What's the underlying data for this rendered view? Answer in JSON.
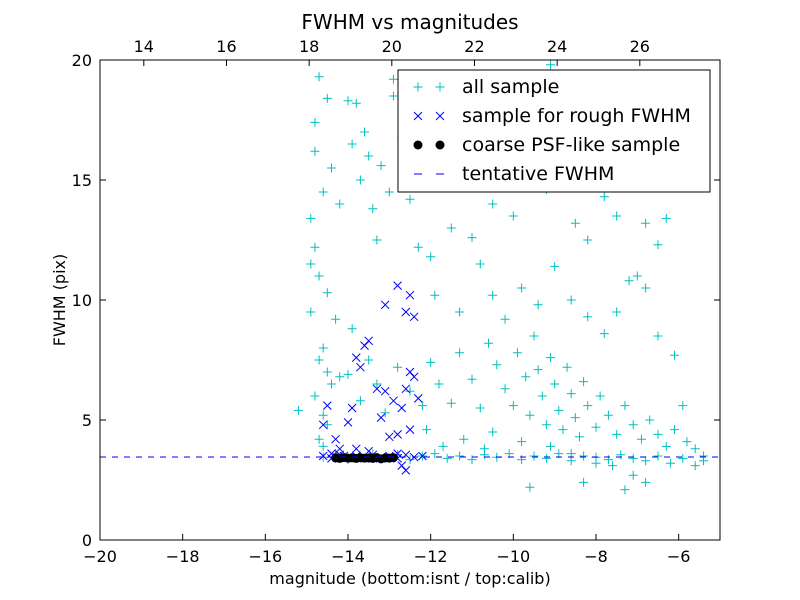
{
  "chart_data": {
    "type": "scatter",
    "title": "FWHM vs magnitudes",
    "xlabel": "magnitude (bottom:isnt / top:calib)",
    "ylabel": "FWHM (pix)",
    "xlim": [
      -20,
      -5
    ],
    "ylim": [
      0,
      20
    ],
    "top_axis_offset": 32.94,
    "xticks": [
      -20,
      -18,
      -16,
      -14,
      -12,
      -10,
      -8,
      -6
    ],
    "xtick_labels": [
      "−20",
      "−18",
      "−16",
      "−14",
      "−12",
      "−10",
      "−8",
      "−6"
    ],
    "top_xticks": [
      14,
      16,
      18,
      20,
      22,
      24,
      26
    ],
    "top_xtick_labels": [
      "14",
      "16",
      "18",
      "20",
      "22",
      "24",
      "26"
    ],
    "yticks": [
      0,
      5,
      10,
      15,
      20
    ],
    "ytick_labels": [
      "0",
      "5",
      "10",
      "15",
      "20"
    ],
    "legend_position": "top-right",
    "colors": {
      "all": "#00bfbf",
      "rough": "#0000ff",
      "coarse": "#000000",
      "tentative": "#0000ff"
    },
    "series": [
      {
        "name": "all sample",
        "marker": "plus",
        "points": [
          [
            -14.9,
            13.4
          ],
          [
            -14.8,
            12.2
          ],
          [
            -14.7,
            11
          ],
          [
            -14.9,
            9.5
          ],
          [
            -14.6,
            8
          ],
          [
            -14.7,
            7.5
          ],
          [
            -14.5,
            7
          ],
          [
            -14.8,
            6
          ],
          [
            -14.6,
            5.2
          ],
          [
            -14.5,
            4.8
          ],
          [
            -14.7,
            4.2
          ],
          [
            -14.6,
            3.9
          ],
          [
            -14.8,
            17.4
          ],
          [
            -14.7,
            19.3
          ],
          [
            -14.5,
            18.4
          ],
          [
            -14.8,
            16.2
          ],
          [
            -14.4,
            15.5
          ],
          [
            -14.6,
            14.5
          ],
          [
            -14.9,
            11.5
          ],
          [
            -14.3,
            9.2
          ],
          [
            -14.5,
            10.3
          ],
          [
            -14.4,
            6.5
          ],
          [
            -15.2,
            5.4
          ],
          [
            -14.2,
            6.8
          ],
          [
            -14,
            18.3
          ],
          [
            -13.8,
            18.2
          ],
          [
            -13.6,
            17
          ],
          [
            -13.9,
            16.5
          ],
          [
            -13.5,
            16
          ],
          [
            -13.2,
            15.6
          ],
          [
            -13.7,
            15
          ],
          [
            -14.2,
            14
          ],
          [
            -13.4,
            13.8
          ],
          [
            -13,
            14.5
          ],
          [
            -13.3,
            12.5
          ],
          [
            -12.9,
            18.5
          ],
          [
            -12.9,
            19.2
          ],
          [
            -12.7,
            16.8
          ],
          [
            -12.5,
            14.2
          ],
          [
            -12.3,
            12.2
          ],
          [
            -12,
            11.8
          ],
          [
            -11.5,
            13
          ],
          [
            -11,
            12.6
          ],
          [
            -10.5,
            14
          ],
          [
            -10.8,
            11.5
          ],
          [
            -10,
            13.5
          ],
          [
            -9.6,
            15.5
          ],
          [
            -9.2,
            14.6
          ],
          [
            -8.8,
            16.2
          ],
          [
            -8.5,
            13.2
          ],
          [
            -8.2,
            12.5
          ],
          [
            -7.8,
            14.3
          ],
          [
            -7.5,
            13.5
          ],
          [
            -7,
            11
          ],
          [
            -6.8,
            13.2
          ],
          [
            -6.5,
            12.3
          ],
          [
            -6.3,
            13.4
          ],
          [
            -6.8,
            10.5
          ],
          [
            -7.2,
            10.8
          ],
          [
            -9.8,
            17.5
          ],
          [
            -9.5,
            19.3
          ],
          [
            -9.1,
            19.8
          ],
          [
            -9.3,
            18.2
          ],
          [
            -10.3,
            16.5
          ],
          [
            -11.3,
            15
          ],
          [
            -11.9,
            10.2
          ],
          [
            -11.3,
            9.5
          ],
          [
            -10.5,
            10.2
          ],
          [
            -10.2,
            9.2
          ],
          [
            -9.8,
            10.5
          ],
          [
            -9.4,
            9.8
          ],
          [
            -9,
            11.4
          ],
          [
            -8.6,
            10
          ],
          [
            -8.2,
            9.3
          ],
          [
            -7.8,
            8.6
          ],
          [
            -7.5,
            9.5
          ],
          [
            -6.5,
            8.5
          ],
          [
            -6.1,
            7.7
          ],
          [
            -5.9,
            5.6
          ],
          [
            -13.9,
            8.8
          ],
          [
            -13.5,
            7.5
          ],
          [
            -14,
            6.9
          ],
          [
            -13.3,
            6.5
          ],
          [
            -13.7,
            5.8
          ],
          [
            -13.1,
            5.3
          ],
          [
            -12.8,
            7.2
          ],
          [
            -12.5,
            6.2
          ],
          [
            -12.2,
            5.6
          ],
          [
            -12,
            7.4
          ],
          [
            -11.8,
            6.5
          ],
          [
            -11.5,
            5.7
          ],
          [
            -11.3,
            7.8
          ],
          [
            -11,
            6.7
          ],
          [
            -10.8,
            5.5
          ],
          [
            -10.6,
            8.2
          ],
          [
            -10.4,
            7.3
          ],
          [
            -10.2,
            6.3
          ],
          [
            -10,
            5.6
          ],
          [
            -9.9,
            7.8
          ],
          [
            -9.7,
            6.8
          ],
          [
            -9.6,
            5.2
          ],
          [
            -9.5,
            8.5
          ],
          [
            -9.4,
            7.1
          ],
          [
            -9.3,
            6
          ],
          [
            -9.2,
            4.8
          ],
          [
            -9.1,
            7.6
          ],
          [
            -9,
            6.5
          ],
          [
            -8.9,
            5.4
          ],
          [
            -8.8,
            4.6
          ],
          [
            -8.7,
            7.2
          ],
          [
            -8.6,
            6.1
          ],
          [
            -8.5,
            5.1
          ],
          [
            -8.4,
            4.3
          ],
          [
            -8.3,
            6.6
          ],
          [
            -8.2,
            5.6
          ],
          [
            -8,
            4.7
          ],
          [
            -7.9,
            6
          ],
          [
            -7.7,
            5.2
          ],
          [
            -7.5,
            4.4
          ],
          [
            -7.3,
            5.6
          ],
          [
            -7.1,
            4.8
          ],
          [
            -6.9,
            4.2
          ],
          [
            -6.7,
            5
          ],
          [
            -6.5,
            4.4
          ],
          [
            -6.3,
            3.9
          ],
          [
            -6.1,
            4.6
          ],
          [
            -5.8,
            4.1
          ],
          [
            -5.6,
            3.8
          ],
          [
            -5.4,
            3.3
          ],
          [
            -10.5,
            4.5
          ],
          [
            -11.2,
            4.2
          ],
          [
            -12.1,
            4.6
          ],
          [
            -9.8,
            4.1
          ],
          [
            -9.1,
            3.9
          ],
          [
            -8.6,
            3.6
          ],
          [
            -8,
            3.2
          ],
          [
            -7.6,
            3.1
          ],
          [
            -7.1,
            2.7
          ],
          [
            -6.8,
            2.4
          ],
          [
            -9.6,
            2.2
          ],
          [
            -8.3,
            2.4
          ],
          [
            -7.3,
            2.1
          ],
          [
            -10.7,
            3.8
          ],
          [
            -11.7,
            3.9
          ],
          [
            -14.6,
            3.45
          ],
          [
            -14.3,
            3.6
          ],
          [
            -14,
            3.35
          ],
          [
            -13.7,
            3.5
          ],
          [
            -13.4,
            3.6
          ],
          [
            -13.1,
            3.4
          ],
          [
            -12.8,
            3.55
          ],
          [
            -12.5,
            3.35
          ],
          [
            -12.2,
            3.5
          ],
          [
            -11.9,
            3.6
          ],
          [
            -11.6,
            3.4
          ],
          [
            -11.3,
            3.5
          ],
          [
            -11,
            3.35
          ],
          [
            -10.7,
            3.55
          ],
          [
            -10.4,
            3.45
          ],
          [
            -10.1,
            3.6
          ],
          [
            -9.8,
            3.35
          ],
          [
            -9.5,
            3.5
          ],
          [
            -9.2,
            3.4
          ],
          [
            -8.9,
            3.6
          ],
          [
            -8.6,
            3.3
          ],
          [
            -8.3,
            3.5
          ],
          [
            -8,
            3.45
          ],
          [
            -7.7,
            3.35
          ],
          [
            -7.4,
            3.55
          ],
          [
            -7.1,
            3.4
          ],
          [
            -6.8,
            3.3
          ],
          [
            -6.5,
            3.5
          ],
          [
            -6.2,
            3.2
          ],
          [
            -5.9,
            3.4
          ],
          [
            -5.6,
            3.1
          ],
          [
            -5.4,
            3.5
          ]
        ]
      },
      {
        "name": "sample for rough FWHM",
        "marker": "x",
        "points": [
          [
            -14.4,
            3.6
          ],
          [
            -14.3,
            4.2
          ],
          [
            -14.5,
            5.6
          ],
          [
            -14.6,
            4.8
          ],
          [
            -14,
            4.9
          ],
          [
            -13.9,
            5.5
          ],
          [
            -13.8,
            7.6
          ],
          [
            -13.7,
            7.2
          ],
          [
            -13.5,
            8.3
          ],
          [
            -13.3,
            6.3
          ],
          [
            -13.1,
            6.2
          ],
          [
            -13.2,
            5.1
          ],
          [
            -13,
            4.3
          ],
          [
            -12.9,
            5.8
          ],
          [
            -12.8,
            4.4
          ],
          [
            -12.7,
            5.5
          ],
          [
            -12.6,
            6.3
          ],
          [
            -12.5,
            7
          ],
          [
            -12.4,
            6.8
          ],
          [
            -12.3,
            5.9
          ],
          [
            -12.6,
            9.5
          ],
          [
            -12.5,
            10.2
          ],
          [
            -12.4,
            9.3
          ],
          [
            -12.8,
            10.6
          ],
          [
            -13.1,
            9.8
          ],
          [
            -13.6,
            8.1
          ],
          [
            -14.2,
            3.8
          ],
          [
            -13.5,
            3.7
          ],
          [
            -12.8,
            3.6
          ],
          [
            -13.4,
            3.4
          ],
          [
            -14.1,
            3.5
          ],
          [
            -12.6,
            2.9
          ],
          [
            -12.5,
            4.6
          ],
          [
            -13.8,
            3.8
          ],
          [
            -12.7,
            3.1
          ],
          [
            -14.6,
            3.5
          ],
          [
            -14.4,
            3.4
          ],
          [
            -14.2,
            3.55
          ],
          [
            -14,
            3.45
          ],
          [
            -13.8,
            3.5
          ],
          [
            -13.6,
            3.4
          ],
          [
            -13.4,
            3.55
          ],
          [
            -13.2,
            3.45
          ],
          [
            -13,
            3.5
          ],
          [
            -12.8,
            3.4
          ],
          [
            -12.6,
            3.55
          ],
          [
            -12.4,
            3.45
          ],
          [
            -12.2,
            3.5
          ]
        ]
      },
      {
        "name": "coarse PSF-like sample",
        "marker": "circle",
        "points": [
          [
            -14.3,
            3.42
          ],
          [
            -14.2,
            3.4
          ],
          [
            -14.1,
            3.43
          ],
          [
            -14,
            3.41
          ],
          [
            -13.9,
            3.42
          ],
          [
            -13.8,
            3.4
          ],
          [
            -13.7,
            3.43
          ],
          [
            -13.6,
            3.41
          ],
          [
            -13.5,
            3.42
          ],
          [
            -13.4,
            3.4
          ],
          [
            -13.3,
            3.43
          ],
          [
            -13.2,
            3.38
          ],
          [
            -13.1,
            3.42
          ],
          [
            -13,
            3.41
          ],
          [
            -12.9,
            3.43
          ]
        ]
      },
      {
        "name": "tentative FWHM",
        "marker": "dashed-line",
        "value": 3.46
      }
    ]
  }
}
